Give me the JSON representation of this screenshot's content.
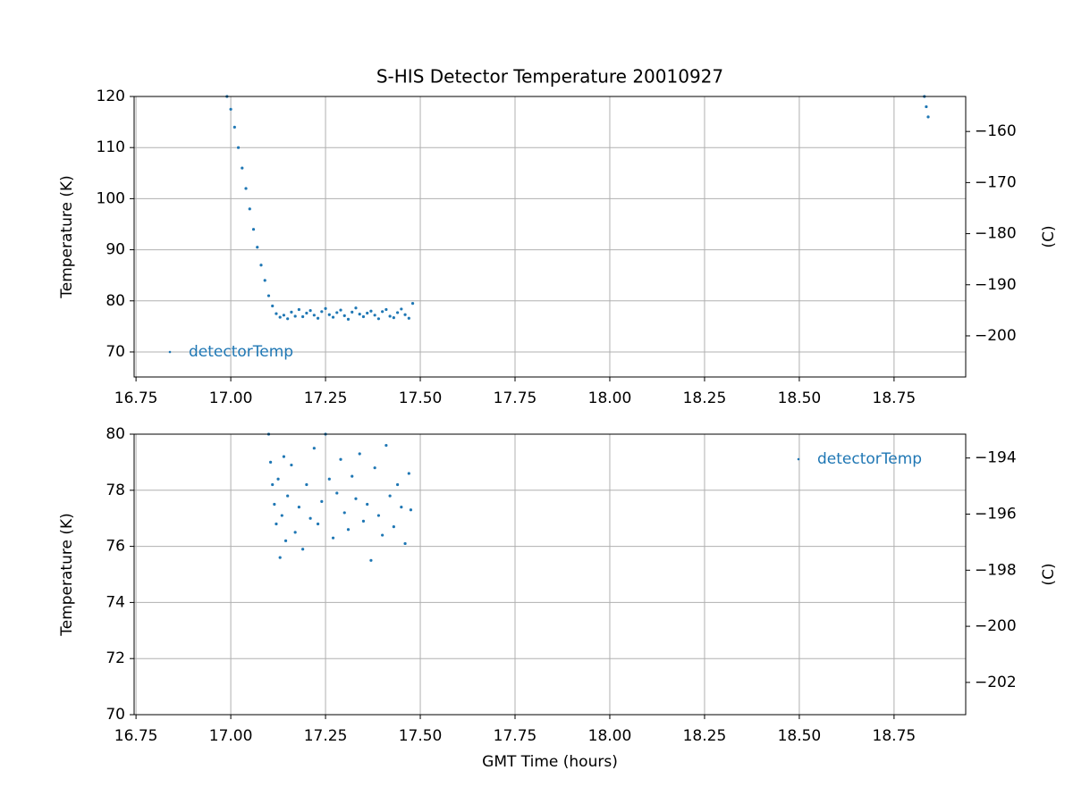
{
  "chart_data": [
    {
      "type": "scatter",
      "title": "S-HIS Detector Temperature 20010927",
      "y_label": "Temperature (K)",
      "y2_label": "(C)",
      "legend": "lower left",
      "grid": true,
      "x": [
        16.99,
        17.0,
        17.01,
        17.02,
        17.03,
        17.04,
        17.05,
        17.06,
        17.07,
        17.08,
        17.09,
        17.1,
        17.11,
        17.12,
        17.13,
        17.14,
        17.15,
        17.16,
        17.17,
        17.18,
        17.19,
        17.2,
        17.21,
        17.22,
        17.23,
        17.24,
        17.25,
        17.26,
        17.27,
        17.28,
        17.29,
        17.3,
        17.31,
        17.32,
        17.33,
        17.34,
        17.35,
        17.36,
        17.37,
        17.38,
        17.39,
        17.4,
        17.41,
        17.42,
        17.43,
        17.44,
        17.45,
        17.46,
        17.47,
        17.48,
        18.83,
        18.835,
        18.84
      ],
      "series": [
        {
          "name": "detectorTemp",
          "color": "#1f77b4",
          "values": [
            120,
            117.5,
            114,
            110,
            106,
            102,
            98,
            94,
            90.5,
            87,
            84,
            81,
            79,
            77.5,
            76.8,
            77.2,
            76.5,
            77.8,
            77,
            78.3,
            76.9,
            77.6,
            78.1,
            77.2,
            76.6,
            77.9,
            78.5,
            77.3,
            76.8,
            77.7,
            78.2,
            77.1,
            76.4,
            77.8,
            78.6,
            77.4,
            76.9,
            77.6,
            78,
            77.2,
            76.5,
            77.9,
            78.3,
            77,
            76.7,
            77.7,
            78.4,
            77.3,
            76.6,
            79.5,
            120,
            118,
            116
          ]
        }
      ],
      "xlim": [
        16.745,
        18.939
      ],
      "xticks": [
        16.75,
        {
          "value": 17,
          "label": "17.00"
        },
        17.25,
        {
          "value": 17.5,
          "label": "17.50"
        },
        17.75,
        {
          "value": 18,
          "label": "18.00"
        },
        18.25,
        {
          "value": 18.5,
          "label": "18.50"
        },
        18.75
      ],
      "ylim": [
        65.1,
        120
      ],
      "yticks": [
        70,
        80,
        90,
        100,
        110,
        120
      ],
      "y2lim": [
        -208.05,
        -153.15
      ],
      "y2ticks": [
        {
          "value": -200,
          "label": "−200"
        },
        {
          "value": -190,
          "label": "−190"
        },
        {
          "value": -180,
          "label": "−180"
        },
        {
          "value": -170,
          "label": "−170"
        },
        {
          "value": -160,
          "label": "−160"
        }
      ]
    },
    {
      "type": "scatter",
      "x_label": "GMT Time (hours)",
      "y_label": "Temperature (K)",
      "y2_label": "(C)",
      "legend": "upper right",
      "grid": true,
      "x": [
        17.1,
        17.105,
        17.11,
        17.115,
        17.12,
        17.125,
        17.13,
        17.135,
        17.14,
        17.145,
        17.15,
        17.16,
        17.17,
        17.18,
        17.19,
        17.2,
        17.21,
        17.22,
        17.23,
        17.24,
        17.25,
        17.26,
        17.27,
        17.28,
        17.29,
        17.3,
        17.31,
        17.32,
        17.33,
        17.34,
        17.35,
        17.36,
        17.37,
        17.38,
        17.39,
        17.4,
        17.41,
        17.42,
        17.43,
        17.44,
        17.45,
        17.46,
        17.47,
        17.475
      ],
      "series": [
        {
          "name": "detectorTemp",
          "color": "#1f77b4",
          "values": [
            80,
            79,
            78.2,
            77.5,
            76.8,
            78.4,
            75.6,
            77.1,
            79.2,
            76.2,
            77.8,
            78.9,
            76.5,
            77.4,
            75.9,
            78.2,
            77,
            79.5,
            76.8,
            77.6,
            80,
            78.4,
            76.3,
            77.9,
            79.1,
            77.2,
            76.6,
            78.5,
            77.7,
            79.3,
            76.9,
            77.5,
            75.5,
            78.8,
            77.1,
            76.4,
            79.6,
            77.8,
            76.7,
            78.2,
            77.4,
            76.1,
            78.6,
            77.3
          ]
        }
      ],
      "xlim": [
        16.745,
        18.939
      ],
      "xticks": [
        16.75,
        {
          "value": 17,
          "label": "17.00"
        },
        17.25,
        {
          "value": 17.5,
          "label": "17.50"
        },
        17.75,
        {
          "value": 18,
          "label": "18.00"
        },
        18.25,
        {
          "value": 18.5,
          "label": "18.50"
        },
        18.75
      ],
      "ylim": [
        70,
        80
      ],
      "yticks": [
        70,
        72,
        74,
        76,
        78,
        80
      ],
      "y2lim": [
        -203.15,
        -193.15
      ],
      "y2ticks": [
        {
          "value": -202,
          "label": "−202"
        },
        {
          "value": -200,
          "label": "−200"
        },
        {
          "value": -198,
          "label": "−198"
        },
        {
          "value": -196,
          "label": "−196"
        },
        {
          "value": -194,
          "label": "−194"
        }
      ]
    }
  ]
}
